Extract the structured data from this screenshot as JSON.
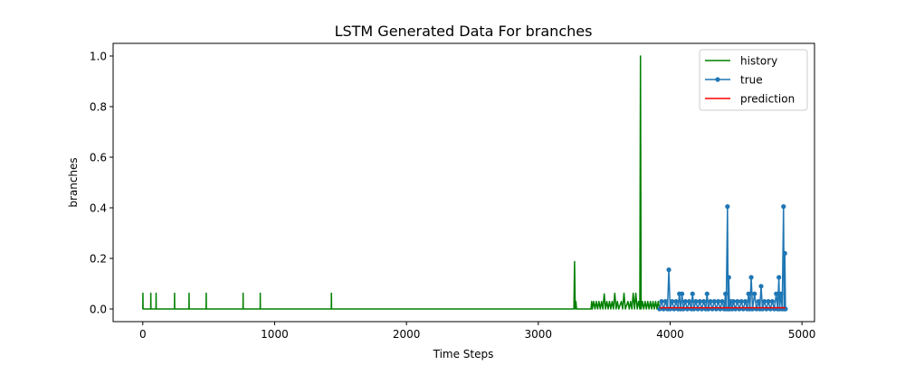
{
  "chart_data": {
    "type": "line",
    "title": "LSTM Generated Data For branches",
    "xlabel": "Time Steps",
    "ylabel": "branches",
    "xlim": [
      -225,
      5095
    ],
    "ylim": [
      -0.05,
      1.05
    ],
    "x_ticks": [
      0,
      1000,
      2000,
      3000,
      4000,
      5000
    ],
    "x_tick_labels": [
      "0",
      "1000",
      "2000",
      "3000",
      "4000",
      "5000"
    ],
    "y_ticks": [
      0.0,
      0.2,
      0.4,
      0.6,
      0.8,
      1.0
    ],
    "y_tick_labels": [
      "0.0",
      "0.2",
      "0.4",
      "0.6",
      "0.8",
      "1.0"
    ],
    "grid": false,
    "legend_position": "top-right",
    "series": [
      {
        "name": "history",
        "color": "#008000",
        "marker": "none",
        "points": [
          [
            0,
            0
          ],
          [
            1,
            0.0625
          ],
          [
            2,
            0
          ],
          [
            60,
            0
          ],
          [
            61,
            0.0625
          ],
          [
            62,
            0
          ],
          [
            100,
            0
          ],
          [
            101,
            0.0625
          ],
          [
            102,
            0
          ],
          [
            240,
            0
          ],
          [
            241,
            0.0625
          ],
          [
            242,
            0
          ],
          [
            350,
            0
          ],
          [
            351,
            0.0625
          ],
          [
            352,
            0
          ],
          [
            480,
            0
          ],
          [
            481,
            0.0625
          ],
          [
            482,
            0
          ],
          [
            760,
            0
          ],
          [
            761,
            0.0625
          ],
          [
            762,
            0
          ],
          [
            890,
            0
          ],
          [
            891,
            0.0625
          ],
          [
            892,
            0
          ],
          [
            1430,
            0
          ],
          [
            1431,
            0.0625
          ],
          [
            1432,
            0
          ],
          [
            3270,
            0
          ],
          [
            3275,
            0.1875
          ],
          [
            3280,
            0
          ],
          [
            3285,
            0.03
          ],
          [
            3290,
            0
          ],
          [
            3400,
            0
          ],
          [
            3405,
            0.03
          ],
          [
            3410,
            0
          ],
          [
            3420,
            0.03
          ],
          [
            3430,
            0
          ],
          [
            3440,
            0.03
          ],
          [
            3450,
            0
          ],
          [
            3460,
            0.03
          ],
          [
            3470,
            0
          ],
          [
            3480,
            0.03
          ],
          [
            3490,
            0
          ],
          [
            3500,
            0.06
          ],
          [
            3510,
            0
          ],
          [
            3520,
            0.03
          ],
          [
            3530,
            0
          ],
          [
            3540,
            0.03
          ],
          [
            3550,
            0
          ],
          [
            3560,
            0.03
          ],
          [
            3570,
            0
          ],
          [
            3580,
            0.0625
          ],
          [
            3590,
            0
          ],
          [
            3600,
            0.03
          ],
          [
            3610,
            0
          ],
          [
            3630,
            0.03
          ],
          [
            3640,
            0
          ],
          [
            3650,
            0.0625
          ],
          [
            3660,
            0
          ],
          [
            3680,
            0.03
          ],
          [
            3690,
            0
          ],
          [
            3700,
            0.03
          ],
          [
            3710,
            0
          ],
          [
            3720,
            0.0625
          ],
          [
            3730,
            0
          ],
          [
            3740,
            0.0625
          ],
          [
            3750,
            0
          ],
          [
            3760,
            0.03
          ],
          [
            3770,
            0
          ],
          [
            3775,
            1.0
          ],
          [
            3780,
            0
          ],
          [
            3790,
            0.03
          ],
          [
            3800,
            0
          ],
          [
            3810,
            0.03
          ],
          [
            3820,
            0
          ],
          [
            3830,
            0.03
          ],
          [
            3840,
            0
          ],
          [
            3850,
            0.03
          ],
          [
            3860,
            0
          ],
          [
            3870,
            0.03
          ],
          [
            3880,
            0
          ],
          [
            3890,
            0.03
          ],
          [
            3900,
            0
          ],
          [
            3910,
            0.03
          ],
          [
            3920,
            0
          ]
        ]
      },
      {
        "name": "true",
        "color": "#1f77b4",
        "marker": "circle",
        "points": [
          [
            3920,
            0.0
          ],
          [
            3935,
            0.03
          ],
          [
            3950,
            0.0
          ],
          [
            3965,
            0.03
          ],
          [
            3980,
            0.0
          ],
          [
            3990,
            0.155
          ],
          [
            4000,
            0.0
          ],
          [
            4015,
            0.03
          ],
          [
            4030,
            0.0
          ],
          [
            4045,
            0.03
          ],
          [
            4060,
            0.0
          ],
          [
            4070,
            0.06
          ],
          [
            4080,
            0.0
          ],
          [
            4090,
            0.06
          ],
          [
            4100,
            0.0
          ],
          [
            4115,
            0.03
          ],
          [
            4130,
            0.0
          ],
          [
            4145,
            0.03
          ],
          [
            4160,
            0.0
          ],
          [
            4170,
            0.06
          ],
          [
            4180,
            0.0
          ],
          [
            4195,
            0.03
          ],
          [
            4210,
            0.0
          ],
          [
            4225,
            0.03
          ],
          [
            4240,
            0.0
          ],
          [
            4255,
            0.03
          ],
          [
            4270,
            0.0
          ],
          [
            4280,
            0.06
          ],
          [
            4290,
            0.0
          ],
          [
            4305,
            0.03
          ],
          [
            4320,
            0.0
          ],
          [
            4335,
            0.03
          ],
          [
            4350,
            0.0
          ],
          [
            4365,
            0.03
          ],
          [
            4380,
            0.0
          ],
          [
            4395,
            0.03
          ],
          [
            4410,
            0.0
          ],
          [
            4420,
            0.06
          ],
          [
            4425,
            0.0
          ],
          [
            4435,
            0.405
          ],
          [
            4440,
            0.0
          ],
          [
            4445,
            0.125
          ],
          [
            4450,
            0.0
          ],
          [
            4460,
            0.03
          ],
          [
            4470,
            0.0
          ],
          [
            4480,
            0.03
          ],
          [
            4495,
            0.0
          ],
          [
            4510,
            0.03
          ],
          [
            4525,
            0.0
          ],
          [
            4540,
            0.03
          ],
          [
            4555,
            0.0
          ],
          [
            4570,
            0.03
          ],
          [
            4585,
            0.0
          ],
          [
            4595,
            0.06
          ],
          [
            4605,
            0.0
          ],
          [
            4615,
            0.125
          ],
          [
            4625,
            0.0
          ],
          [
            4640,
            0.06
          ],
          [
            4655,
            0.0
          ],
          [
            4670,
            0.03
          ],
          [
            4680,
            0.0
          ],
          [
            4690,
            0.09
          ],
          [
            4700,
            0.0
          ],
          [
            4715,
            0.03
          ],
          [
            4730,
            0.0
          ],
          [
            4745,
            0.03
          ],
          [
            4760,
            0.0
          ],
          [
            4775,
            0.03
          ],
          [
            4790,
            0.0
          ],
          [
            4805,
            0.06
          ],
          [
            4815,
            0.0
          ],
          [
            4825,
            0.125
          ],
          [
            4830,
            0.0
          ],
          [
            4840,
            0.06
          ],
          [
            4850,
            0.0
          ],
          [
            4860,
            0.405
          ],
          [
            4865,
            0.0
          ],
          [
            4870,
            0.22
          ],
          [
            4875,
            0.0
          ]
        ]
      },
      {
        "name": "prediction",
        "color": "#ff0000",
        "marker": "none",
        "points": [
          [
            3920,
            0.005
          ],
          [
            4000,
            0.005
          ],
          [
            4100,
            0.005
          ],
          [
            4200,
            0.005
          ],
          [
            4300,
            0.005
          ],
          [
            4400,
            0.005
          ],
          [
            4500,
            0.005
          ],
          [
            4600,
            0.005
          ],
          [
            4700,
            0.005
          ],
          [
            4800,
            0.005
          ],
          [
            4875,
            0.005
          ]
        ]
      }
    ]
  }
}
